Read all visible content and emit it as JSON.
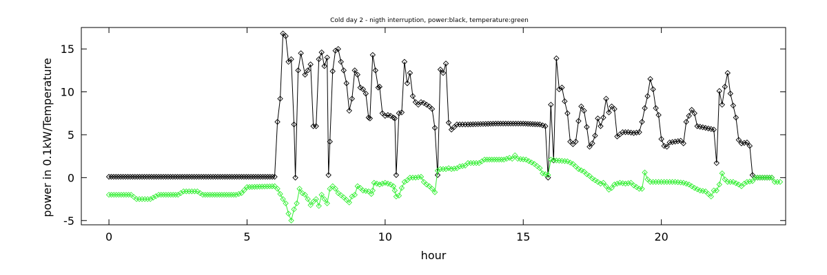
{
  "chart_data": {
    "type": "line",
    "title": "Cold day 2 - nigth interruption, power:black, temperature:green",
    "xlabel": "hour",
    "ylabel": "power in 0.1kW/Temperature",
    "xlim": [
      -1,
      24.5
    ],
    "ylim": [
      -5.5,
      17.5
    ],
    "xticks": [
      0,
      5,
      10,
      15,
      20
    ],
    "yticks": [
      -5,
      0,
      5,
      10,
      15
    ],
    "grid": false,
    "legend": "none",
    "marker": "diamond",
    "series": [
      {
        "color": "#000000",
        "points": [
          [
            0,
            0.1
          ],
          [
            6.0,
            0.1
          ],
          [
            6.1,
            6.5
          ],
          [
            6.2,
            9.2
          ],
          [
            6.3,
            16.8
          ],
          [
            6.4,
            16.5
          ],
          [
            6.5,
            13.5
          ],
          [
            6.6,
            13.8
          ],
          [
            6.7,
            6.2
          ],
          [
            6.75,
            0
          ],
          [
            6.85,
            12.5
          ],
          [
            6.95,
            14.5
          ],
          [
            7.1,
            12
          ],
          [
            7.2,
            12.5
          ],
          [
            7.3,
            13.2
          ],
          [
            7.4,
            6
          ],
          [
            7.5,
            6
          ],
          [
            7.6,
            13.8
          ],
          [
            7.7,
            14.6
          ],
          [
            7.8,
            13
          ],
          [
            7.9,
            14
          ],
          [
            7.95,
            0.3
          ],
          [
            8.0,
            4.2
          ],
          [
            8.1,
            12.4
          ],
          [
            8.2,
            14.8
          ],
          [
            8.3,
            15
          ],
          [
            8.4,
            13.5
          ],
          [
            8.5,
            12.5
          ],
          [
            8.6,
            11
          ],
          [
            8.7,
            7.8
          ],
          [
            8.8,
            9.2
          ],
          [
            8.9,
            12.5
          ],
          [
            9.0,
            12
          ],
          [
            9.1,
            10.5
          ],
          [
            9.2,
            10.3
          ],
          [
            9.3,
            9.8
          ],
          [
            9.4,
            7
          ],
          [
            9.45,
            6.9
          ],
          [
            9.55,
            14.3
          ],
          [
            9.65,
            12.5
          ],
          [
            9.75,
            10.5
          ],
          [
            9.8,
            10.6
          ],
          [
            9.9,
            7.5
          ],
          [
            10.0,
            7.2
          ],
          [
            10.1,
            7.3
          ],
          [
            10.2,
            7.2
          ],
          [
            10.3,
            7
          ],
          [
            10.35,
            6.9
          ],
          [
            10.4,
            0.3
          ],
          [
            10.5,
            7.5
          ],
          [
            10.6,
            7.6
          ],
          [
            10.7,
            13.5
          ],
          [
            10.8,
            11
          ],
          [
            10.9,
            12.2
          ],
          [
            11.0,
            9.5
          ],
          [
            11.1,
            8.8
          ],
          [
            11.2,
            8.5
          ],
          [
            11.3,
            8.8
          ],
          [
            11.4,
            8.7
          ],
          [
            11.5,
            8.5
          ],
          [
            11.6,
            8.3
          ],
          [
            11.7,
            8.0
          ],
          [
            11.8,
            5.8
          ],
          [
            11.9,
            0.3
          ],
          [
            12.0,
            12.6
          ],
          [
            12.1,
            12.2
          ],
          [
            12.2,
            13.3
          ],
          [
            12.3,
            6.4
          ],
          [
            12.4,
            5.6
          ],
          [
            12.6,
            6.2
          ],
          [
            13,
            6.2
          ],
          [
            14,
            6.3
          ],
          [
            15,
            6.3
          ],
          [
            15.6,
            6.2
          ],
          [
            15.8,
            6
          ],
          [
            15.9,
            0
          ],
          [
            16.0,
            8.5
          ],
          [
            16.1,
            2.0
          ],
          [
            16.2,
            13.9
          ],
          [
            16.3,
            10.3
          ],
          [
            16.4,
            10.5
          ],
          [
            16.5,
            8.9
          ],
          [
            16.6,
            7.5
          ],
          [
            16.7,
            4.2
          ],
          [
            16.8,
            3.9
          ],
          [
            16.9,
            4.2
          ],
          [
            17.0,
            6.6
          ],
          [
            17.1,
            8.3
          ],
          [
            17.2,
            7.8
          ],
          [
            17.3,
            5.9
          ],
          [
            17.4,
            3.6
          ],
          [
            17.5,
            4.0
          ],
          [
            17.6,
            4.9
          ],
          [
            17.7,
            6.9
          ],
          [
            17.8,
            6.0
          ],
          [
            17.9,
            7.0
          ],
          [
            18.0,
            9.2
          ],
          [
            18.1,
            7.6
          ],
          [
            18.2,
            8.3
          ],
          [
            18.3,
            8.0
          ],
          [
            18.4,
            4.8
          ],
          [
            18.6,
            5.3
          ],
          [
            18.8,
            5.3
          ],
          [
            19.0,
            5.2
          ],
          [
            19.2,
            5.3
          ],
          [
            19.3,
            6.5
          ],
          [
            19.4,
            8.1
          ],
          [
            19.5,
            9.5
          ],
          [
            19.6,
            11.5
          ],
          [
            19.7,
            10.3
          ],
          [
            19.8,
            8.1
          ],
          [
            19.9,
            7.3
          ],
          [
            20.0,
            4.5
          ],
          [
            20.1,
            3.7
          ],
          [
            20.2,
            3.6
          ],
          [
            20.3,
            4.1
          ],
          [
            20.5,
            4.2
          ],
          [
            20.7,
            4.3
          ],
          [
            20.8,
            4.0
          ],
          [
            20.9,
            6.5
          ],
          [
            21.0,
            7.2
          ],
          [
            21.1,
            7.9
          ],
          [
            21.2,
            7.5
          ],
          [
            21.3,
            6
          ],
          [
            21.6,
            5.8
          ],
          [
            21.9,
            5.6
          ],
          [
            22.0,
            1.7
          ],
          [
            22.1,
            10.1
          ],
          [
            22.2,
            8.5
          ],
          [
            22.3,
            10.6
          ],
          [
            22.4,
            12.2
          ],
          [
            22.5,
            9.8
          ],
          [
            22.6,
            8.4
          ],
          [
            22.7,
            7.0
          ],
          [
            22.8,
            4.4
          ],
          [
            22.9,
            4.0
          ],
          [
            23.1,
            4.1
          ],
          [
            23.2,
            3.7
          ],
          [
            23.3,
            0.3
          ],
          [
            23.4,
            0
          ],
          [
            24,
            0
          ]
        ]
      },
      {
        "color": "#33ee33",
        "points": [
          [
            0,
            -2
          ],
          [
            0.8,
            -2
          ],
          [
            1.0,
            -2.5
          ],
          [
            1.5,
            -2.5
          ],
          [
            1.8,
            -2.0
          ],
          [
            2.5,
            -2.0
          ],
          [
            2.7,
            -1.6
          ],
          [
            3.2,
            -1.6
          ],
          [
            3.4,
            -2.0
          ],
          [
            4.6,
            -2.0
          ],
          [
            4.8,
            -1.8
          ],
          [
            5.0,
            -1.1
          ],
          [
            6.0,
            -1.0
          ],
          [
            6.1,
            -1.3
          ],
          [
            6.3,
            -2.5
          ],
          [
            6.4,
            -3.0
          ],
          [
            6.5,
            -4.2
          ],
          [
            6.6,
            -5.0
          ],
          [
            6.7,
            -3.7
          ],
          [
            6.8,
            -3.0
          ],
          [
            6.9,
            -1.3
          ],
          [
            7.0,
            -1.8
          ],
          [
            7.1,
            -2.0
          ],
          [
            7.2,
            -2.5
          ],
          [
            7.3,
            -3.2
          ],
          [
            7.4,
            -2.8
          ],
          [
            7.5,
            -2.5
          ],
          [
            7.6,
            -3.3
          ],
          [
            7.7,
            -2.0
          ],
          [
            7.8,
            -2.5
          ],
          [
            7.9,
            -3.0
          ],
          [
            8.0,
            -1.3
          ],
          [
            8.1,
            -1.0
          ],
          [
            8.2,
            -1.3
          ],
          [
            8.3,
            -1.8
          ],
          [
            8.5,
            -2.3
          ],
          [
            8.6,
            -2.6
          ],
          [
            8.7,
            -2.9
          ],
          [
            8.8,
            -2.2
          ],
          [
            8.9,
            -2.0
          ],
          [
            9.0,
            -1.0
          ],
          [
            9.1,
            -1.2
          ],
          [
            9.2,
            -1.5
          ],
          [
            9.4,
            -1.6
          ],
          [
            9.5,
            -1.9
          ],
          [
            9.55,
            -1.5
          ],
          [
            9.6,
            -0.6
          ],
          [
            9.7,
            -0.7
          ],
          [
            9.8,
            -0.8
          ],
          [
            10.0,
            -0.6
          ],
          [
            10.2,
            -0.8
          ],
          [
            10.3,
            -1.0
          ],
          [
            10.35,
            -1.5
          ],
          [
            10.4,
            -2.2
          ],
          [
            10.5,
            -2.1
          ],
          [
            10.6,
            -1.2
          ],
          [
            10.7,
            -0.5
          ],
          [
            10.8,
            -0.3
          ],
          [
            10.9,
            0
          ],
          [
            11.1,
            0
          ],
          [
            11.3,
            0.1
          ],
          [
            11.4,
            -0.5
          ],
          [
            11.5,
            -0.8
          ],
          [
            11.6,
            -1.0
          ],
          [
            11.7,
            -1.3
          ],
          [
            11.8,
            -1.7
          ],
          [
            11.9,
            0.8
          ],
          [
            12.0,
            1.0
          ],
          [
            12.2,
            1.0
          ],
          [
            12.3,
            1.1
          ],
          [
            12.4,
            1.0
          ],
          [
            12.6,
            1.1
          ],
          [
            12.7,
            1.3
          ],
          [
            12.9,
            1.4
          ],
          [
            13.0,
            1.7
          ],
          [
            13.4,
            1.7
          ],
          [
            13.6,
            2.1
          ],
          [
            14.3,
            2.1
          ],
          [
            14.5,
            2.3
          ],
          [
            14.6,
            2.2
          ],
          [
            14.7,
            2.6
          ],
          [
            14.8,
            2.2
          ],
          [
            15.1,
            2.1
          ],
          [
            15.4,
            1.6
          ],
          [
            15.6,
            1.1
          ],
          [
            15.7,
            0.5
          ],
          [
            15.8,
            0.4
          ],
          [
            15.9,
            0.3
          ],
          [
            16.0,
            2.1
          ],
          [
            16.2,
            2.0
          ],
          [
            16.6,
            1.9
          ],
          [
            16.8,
            1.6
          ],
          [
            17.0,
            1.0
          ],
          [
            17.2,
            0.7
          ],
          [
            17.3,
            0.4
          ],
          [
            17.4,
            0.2
          ],
          [
            17.5,
            -0.1
          ],
          [
            17.6,
            -0.3
          ],
          [
            17.7,
            -0.5
          ],
          [
            17.8,
            -0.7
          ],
          [
            17.9,
            -0.6
          ],
          [
            18.0,
            -1.0
          ],
          [
            18.1,
            -1.4
          ],
          [
            18.2,
            -1.2
          ],
          [
            18.3,
            -0.8
          ],
          [
            18.5,
            -0.6
          ],
          [
            18.7,
            -0.7
          ],
          [
            18.9,
            -0.6
          ],
          [
            19.0,
            -0.9
          ],
          [
            19.2,
            -1.3
          ],
          [
            19.3,
            -1.3
          ],
          [
            19.4,
            0.6
          ],
          [
            19.5,
            -0.2
          ],
          [
            19.6,
            -0.5
          ],
          [
            20.0,
            -0.5
          ],
          [
            20.5,
            -0.5
          ],
          [
            20.8,
            -0.6
          ],
          [
            21.0,
            -0.8
          ],
          [
            21.2,
            -1.2
          ],
          [
            21.4,
            -1.5
          ],
          [
            21.6,
            -1.6
          ],
          [
            21.8,
            -2.2
          ],
          [
            21.9,
            -1.5
          ],
          [
            22.0,
            -1.5
          ],
          [
            22.1,
            -0.8
          ],
          [
            22.2,
            0.5
          ],
          [
            22.3,
            -0.2
          ],
          [
            22.4,
            -0.5
          ],
          [
            22.6,
            -0.5
          ],
          [
            22.8,
            -0.8
          ],
          [
            22.9,
            -1.0
          ],
          [
            23.0,
            -0.7
          ],
          [
            23.1,
            -0.5
          ],
          [
            23.3,
            -0.4
          ],
          [
            23.4,
            0
          ],
          [
            24,
            0
          ],
          [
            24.1,
            -0.5
          ],
          [
            24.3,
            -0.5
          ]
        ]
      }
    ]
  }
}
